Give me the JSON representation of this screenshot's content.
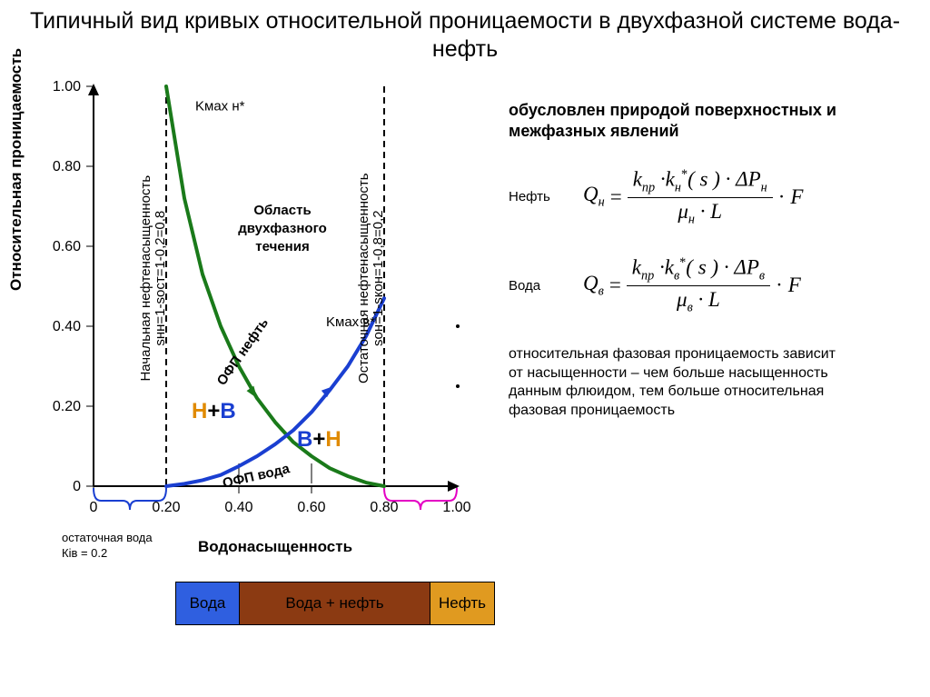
{
  "title": "Типичный вид кривых относительной проницаемости в двухфазной системе вода-нефть",
  "chart": {
    "ylabel": "Относительная проницаемость",
    "xlabel": "Водонасыщенность",
    "xlim": [
      0,
      1.0
    ],
    "ylim": [
      0,
      1.0
    ],
    "xticks": [
      0,
      0.2,
      0.4,
      0.6,
      0.8,
      1.0
    ],
    "yticks": [
      0,
      0.2,
      0.4,
      0.6,
      0.8,
      1.0
    ],
    "s_water_start": 0.2,
    "s_water_end": 0.8,
    "colors": {
      "oil_curve": "#1a7a1a",
      "water_curve": "#1a3fd1",
      "background": "#ffffff",
      "axis": "#000000",
      "brace_water": "#1a3fd1",
      "brace_oil": "#e400c4",
      "text_oil": "#e08a00",
      "text_water": "#1a3fd1"
    },
    "oil_curve_points": [
      [
        0.2,
        1.0
      ],
      [
        0.25,
        0.72
      ],
      [
        0.3,
        0.53
      ],
      [
        0.35,
        0.4
      ],
      [
        0.4,
        0.3
      ],
      [
        0.45,
        0.22
      ],
      [
        0.5,
        0.16
      ],
      [
        0.55,
        0.11
      ],
      [
        0.6,
        0.075
      ],
      [
        0.65,
        0.045
      ],
      [
        0.7,
        0.025
      ],
      [
        0.75,
        0.009
      ],
      [
        0.8,
        0.0
      ]
    ],
    "water_curve_points": [
      [
        0.2,
        0.0
      ],
      [
        0.25,
        0.006
      ],
      [
        0.3,
        0.015
      ],
      [
        0.35,
        0.028
      ],
      [
        0.4,
        0.05
      ],
      [
        0.45,
        0.075
      ],
      [
        0.5,
        0.105
      ],
      [
        0.55,
        0.14
      ],
      [
        0.6,
        0.185
      ],
      [
        0.65,
        0.24
      ],
      [
        0.7,
        0.3
      ],
      [
        0.75,
        0.375
      ],
      [
        0.8,
        0.47
      ]
    ],
    "annotations": {
      "k_max_oil": "Kмах н*",
      "k_max_water": "Kмах в*",
      "two_phase_region": "Область двухфазного течения",
      "ofp_oil": "ОФП нефть",
      "ofp_water": "ОФП вода",
      "H_plus_B": "Н+В",
      "B_plus_H": "В+Н",
      "left_vertical_label": "Начальная нефтенасыщенность sнн=1-sост=1-0,2=0,8",
      "right_vertical_label": "Остаточная нефтенасыщенность sон=1-sкон=1-0,8=0,2"
    }
  },
  "footnote": "остаточная вода\nКів = 0.2",
  "legend": [
    {
      "label": "Вода",
      "width_pct": 20,
      "bg": "#2f5fe0",
      "fg": "#000"
    },
    {
      "label": "Вода + нефть",
      "width_pct": 60,
      "bg": "#8b3a12",
      "fg": "#000"
    },
    {
      "label": "Нефть",
      "width_pct": 20,
      "bg": "#e09a20",
      "fg": "#000"
    }
  ],
  "side": {
    "heading": "обусловлен природой поверхностных и межфазных явлений",
    "formulas": [
      {
        "label": "Нефть",
        "Q_sub": "н",
        "k_sub": "н",
        "P_sub": "н",
        "mu_sub": "н"
      },
      {
        "label": "Вода",
        "Q_sub": "в",
        "k_sub": "в",
        "P_sub": "в",
        "mu_sub": "в"
      }
    ],
    "blurb": "относительная фазовая проницаемость зависит от насыщенности – чем больше насыщенность данным флюидом, тем больше относительная фазовая проницаемость"
  }
}
